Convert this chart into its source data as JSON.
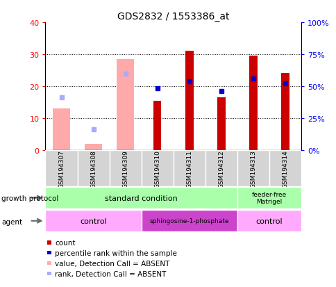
{
  "title": "GDS2832 / 1553386_at",
  "samples": [
    "GSM194307",
    "GSM194308",
    "GSM194309",
    "GSM194310",
    "GSM194311",
    "GSM194312",
    "GSM194313",
    "GSM194314"
  ],
  "count_values": [
    null,
    null,
    null,
    15.5,
    31.2,
    16.5,
    29.5,
    24.2
  ],
  "rank_values": [
    null,
    null,
    null,
    19.5,
    21.5,
    18.5,
    22.5,
    21.0
  ],
  "absent_value_values": [
    13.0,
    2.0,
    28.5,
    null,
    null,
    null,
    null,
    null
  ],
  "absent_rank_values": [
    16.5,
    6.5,
    24.0,
    null,
    null,
    null,
    null,
    null
  ],
  "ylim": [
    0,
    40
  ],
  "yticks": [
    0,
    10,
    20,
    30,
    40
  ],
  "y2ticks": [
    0,
    25,
    50,
    75,
    100
  ],
  "y2ticklabels": [
    "0%",
    "25%",
    "50%",
    "75%",
    "100%"
  ],
  "color_count": "#cc0000",
  "color_rank": "#0000cc",
  "color_absent_value": "#ffaaaa",
  "color_absent_rank": "#aaaaff",
  "color_sample_bg": "#d4d4d4",
  "color_gp_green": "#aaffaa",
  "color_agent_light": "#ffaaff",
  "color_agent_dark": "#cc44cc",
  "legend_items": [
    {
      "label": "count",
      "color": "#cc0000"
    },
    {
      "label": "percentile rank within the sample",
      "color": "#0000cc"
    },
    {
      "label": "value, Detection Call = ABSENT",
      "color": "#ffaaaa"
    },
    {
      "label": "rank, Detection Call = ABSENT",
      "color": "#aaaaff"
    }
  ]
}
